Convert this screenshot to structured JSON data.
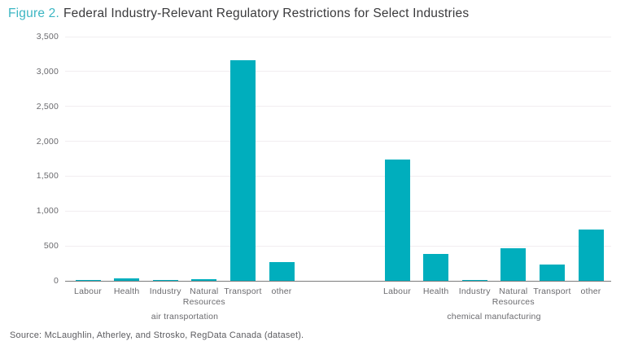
{
  "title": {
    "prefix": "Figure 2.",
    "text": "Federal Industry-Relevant Regulatory Restrictions for Select Industries"
  },
  "source": "Source: McLaughlin, Atherley, and Strosko, RegData Canada (dataset).",
  "colors": {
    "bar": "#00aebd",
    "title_prefix": "#3cb6c3",
    "title_text": "#3a3a3c",
    "gridline": "#f1eef0",
    "baseline": "#7b7b7b",
    "axis_text": "#6a6a6e"
  },
  "chart_data": {
    "type": "bar",
    "title": "Figure 2. Federal Industry-Relevant Regulatory Restrictions for Select Industries",
    "categories": [
      "Labour",
      "Health",
      "Industry",
      "Natural Resources",
      "Transport",
      "other"
    ],
    "series": [
      {
        "name": "air transportation",
        "values": [
          15,
          30,
          15,
          25,
          3160,
          270
        ]
      },
      {
        "name": "chemical manufacturing",
        "values": [
          1740,
          390,
          15,
          470,
          230,
          730
        ]
      }
    ],
    "xlabel": "",
    "ylabel": "",
    "ylim": [
      0,
      3500
    ],
    "yticks": [
      0,
      500,
      1000,
      1500,
      2000,
      2500,
      3000,
      3500
    ],
    "grid": true,
    "legend_position": "none"
  }
}
